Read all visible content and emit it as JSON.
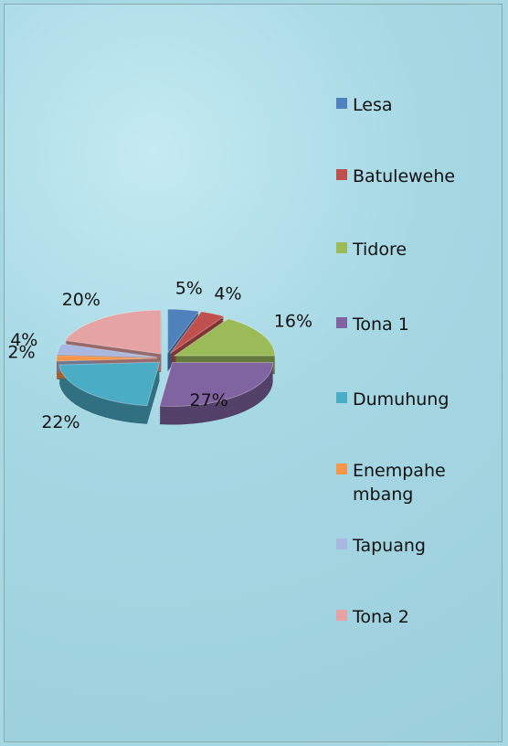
{
  "chart_data": {
    "type": "pie",
    "categories": [
      "Lesa",
      "Batulewehe",
      "Tidore",
      "Tona 1",
      "Dumuhung",
      "Enempahembang",
      "Tapuang",
      "Tona 2"
    ],
    "values": [
      5,
      4,
      16,
      27,
      22,
      2,
      4,
      20
    ],
    "value_labels": [
      "5%",
      "4%",
      "16%",
      "27%",
      "22%",
      "2%",
      "4%",
      "20%"
    ],
    "colors": [
      "#4f81bd",
      "#c0504d",
      "#9bbb59",
      "#8064a2",
      "#4bacc6",
      "#f79646",
      "#a9b8e0",
      "#e6a3a3"
    ],
    "legend": "right"
  }
}
